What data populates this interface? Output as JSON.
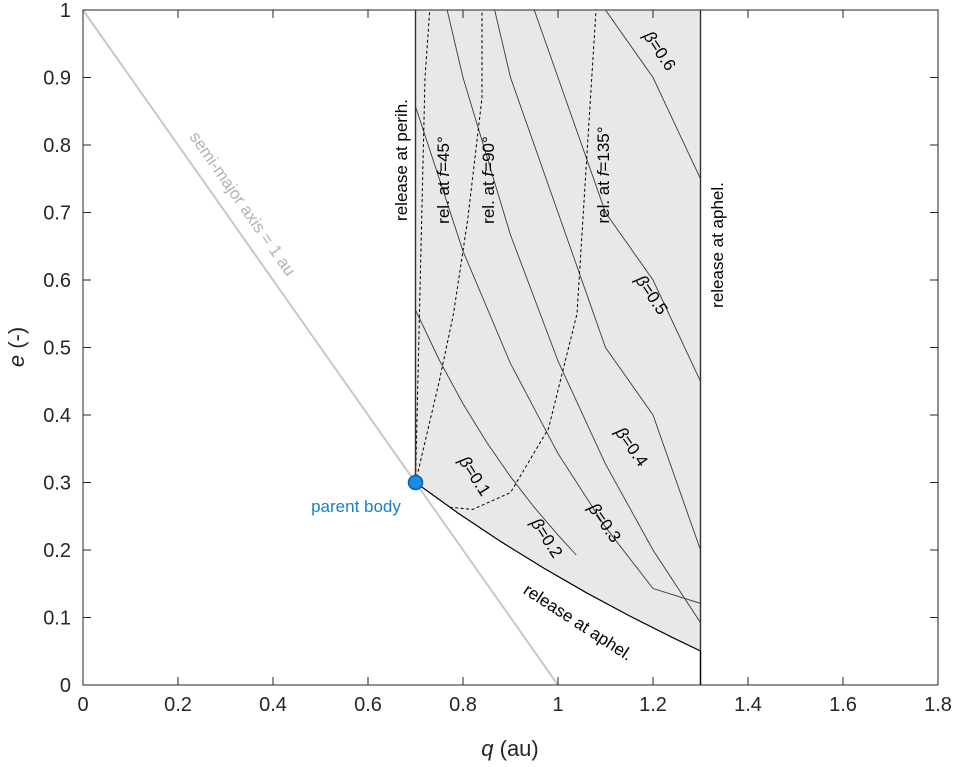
{
  "chart_data": {
    "type": "line",
    "title": "",
    "xlabel": {
      "symbol": "q",
      "unit": " (au)"
    },
    "ylabel": {
      "symbol": "e",
      "unit": " (-)"
    },
    "xlim": [
      0,
      1.8
    ],
    "ylim": [
      0,
      1
    ],
    "x_ticks": [
      0,
      0.2,
      0.4,
      0.6,
      0.8,
      1,
      1.2,
      1.4,
      1.6,
      1.8
    ],
    "x_tick_labels": [
      "0",
      "0.2",
      "0.4",
      "0.6",
      "0.8",
      "1",
      "1.2",
      "1.4",
      "1.6",
      "1.8"
    ],
    "y_ticks": [
      0,
      0.1,
      0.2,
      0.3,
      0.4,
      0.5,
      0.6,
      0.7,
      0.8,
      0.9,
      1
    ],
    "y_tick_labels": [
      "0",
      "0.1",
      "0.2",
      "0.3",
      "0.4",
      "0.5",
      "0.6",
      "0.7",
      "0.8",
      "0.9",
      "1"
    ],
    "grid": false,
    "parent_body": {
      "q": 0.7,
      "e": 0.3,
      "label": "parent body",
      "color": "#1a7fc4"
    },
    "shaded_region": {
      "q_range": [
        0.7,
        1.3
      ],
      "color": "#e8e8e8"
    },
    "semi_major_line": {
      "label": "semi-major axis = 1 au",
      "color": "#c8c8c8",
      "x": [
        0,
        1
      ],
      "y": [
        1,
        0
      ]
    },
    "boundaries": [
      {
        "name": "release at perih.",
        "x": [
          0.7,
          0.7
        ],
        "y": [
          0.3,
          1
        ]
      },
      {
        "name": "release at aphel.",
        "x": [
          1.3,
          1.3
        ],
        "y": [
          0,
          1
        ]
      }
    ],
    "aphelion_lower_curve": {
      "label": "release at aphel.",
      "x": [
        0.7,
        0.79,
        0.88,
        0.97,
        1.06,
        1.15,
        1.24,
        1.3
      ],
      "y": [
        0.3,
        0.2545,
        0.2123,
        0.1731,
        0.1366,
        0.1026,
        0.0707,
        0.0504
      ]
    },
    "beta_curves": [
      {
        "label": "β=0.1",
        "beta": 0.1,
        "x": [
          0.7,
          0.75,
          0.8,
          0.85,
          0.9,
          0.95,
          1.0,
          1.0385
        ],
        "y": [
          0.5556,
          0.4815,
          0.4167,
          0.3595,
          0.3086,
          0.2632,
          0.2222,
          0.1926
        ]
      },
      {
        "label": "β=0.2",
        "beta": 0.2,
        "x": [
          0.7,
          0.8,
          0.9,
          1.0,
          1.1,
          1.2,
          1.3
        ],
        "y": [
          0.8571,
          0.6429,
          0.4762,
          0.3429,
          0.2338,
          0.1429,
          0.1209
        ]
      },
      {
        "label": "β=0.3",
        "beta": 0.3,
        "x": [
          0.7,
          0.8,
          0.9,
          1.0,
          1.1,
          1.2,
          1.3
        ],
        "y": [
          1.2,
          0.9,
          0.6667,
          0.48,
          0.3273,
          0.2,
          0.0923
        ]
      },
      {
        "label": "β=0.4",
        "beta": 0.4,
        "x": [
          0.7,
          0.8,
          0.9,
          1.0,
          1.1,
          1.2,
          1.3
        ],
        "y": [
          1.5,
          1.2,
          0.9,
          0.7,
          0.5,
          0.4,
          0.2
        ]
      },
      {
        "label": "β=0.5",
        "beta": 0.5,
        "x": [
          0.7,
          0.8,
          0.9,
          1.0,
          1.1,
          1.2,
          1.3
        ],
        "y": [
          1.5,
          1.3,
          1.1,
          0.9,
          0.7,
          0.6,
          0.45
        ]
      },
      {
        "label": "β=0.6",
        "beta": 0.6,
        "x": [
          0.7,
          0.8,
          0.9,
          1.0,
          1.1,
          1.2,
          1.3
        ],
        "y": [
          1.5,
          1.5,
          1.4,
          1.2,
          1.0,
          0.9,
          0.75
        ]
      }
    ],
    "true_anomaly_curves": [
      {
        "label": "rel. at f=45°",
        "angle": "45°",
        "x": [
          0.7,
          0.705,
          0.71,
          0.715,
          0.72,
          0.73
        ],
        "y": [
          0.3,
          0.45,
          0.6,
          0.75,
          0.9,
          1.0
        ]
      },
      {
        "label": "rel. at f=90°",
        "angle": "90°",
        "x": [
          0.7,
          0.72,
          0.75,
          0.78,
          0.81,
          0.84,
          0.84
        ],
        "y": [
          0.3,
          0.36,
          0.45,
          0.55,
          0.69,
          0.87,
          1.0
        ]
      },
      {
        "label": "rel. at f=135°",
        "angle": "135°",
        "x": [
          0.7,
          0.75,
          0.82,
          0.9,
          0.98,
          1.04,
          1.08
        ],
        "y": [
          0.3,
          0.265,
          0.26,
          0.285,
          0.38,
          0.55,
          1.0
        ]
      }
    ],
    "labels": {
      "release_perih": "release at perih.",
      "release_aphel_vertical": "release at aphel.",
      "release_aphel_curve": "release at aphel.",
      "semi_major": "semi-major axis = 1 au",
      "parent_body": "parent body",
      "f45_prefix": "rel. at ",
      "f45_var": "f",
      "f45_value": "=45°",
      "f90_prefix": "rel. at ",
      "f90_var": "f",
      "f90_value": "=90°",
      "f135_prefix": "rel. at ",
      "f135_var": "f",
      "f135_value": "=135°",
      "beta_symbol": "β",
      "beta_values": [
        "=0.1",
        "=0.2",
        "=0.3",
        "=0.4",
        "=0.5",
        "=0.6"
      ]
    }
  }
}
